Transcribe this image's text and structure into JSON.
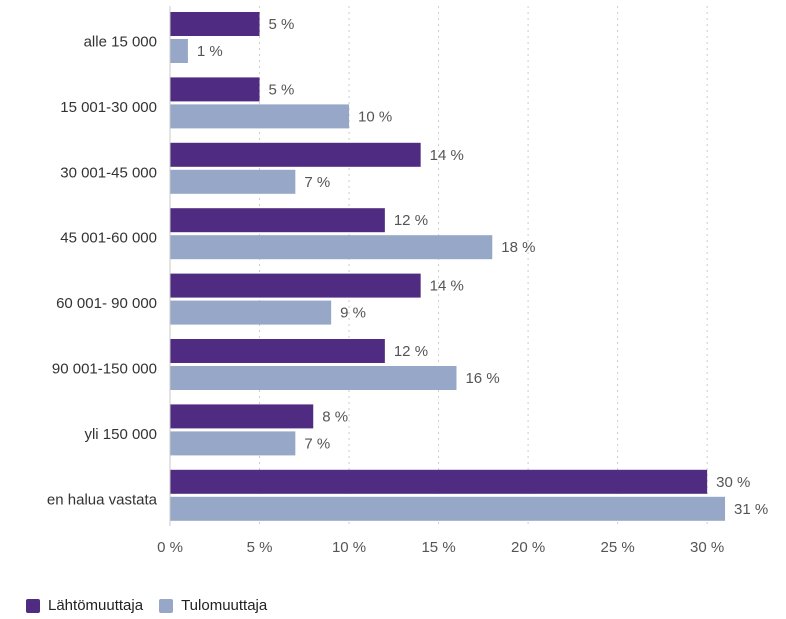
{
  "chart_data": {
    "type": "bar",
    "orientation": "horizontal",
    "title": "",
    "xlabel": "",
    "ylabel": "",
    "categories": [
      "alle 15 000",
      "15 001-30 000",
      "30 001-45 000",
      "45 001-60 000",
      "60 001- 90 000",
      "90 001-150 000",
      "yli 150 000",
      "en halua vastata"
    ],
    "series": [
      {
        "name": "Lähtömuuttaja",
        "color": "#4f2c82",
        "values": [
          5,
          5,
          14,
          12,
          14,
          12,
          8,
          30
        ],
        "labels": [
          "5 %",
          "5 %",
          "14 %",
          "12 %",
          "14 %",
          "12 %",
          "8 %",
          "30 %"
        ]
      },
      {
        "name": "Tulomuuttaja",
        "color": "#97a7c7",
        "values": [
          1,
          10,
          7,
          18,
          9,
          16,
          7,
          31
        ],
        "labels": [
          "1 %",
          "10 %",
          "7 %",
          "18 %",
          "9 %",
          "16 %",
          "7 %",
          "31 %"
        ]
      }
    ],
    "xlim": [
      0,
      31.5
    ],
    "xticks": [
      0,
      5,
      10,
      15,
      20,
      25,
      30
    ],
    "xtick_labels": [
      "0 %",
      "5 %",
      "10 %",
      "15 %",
      "20 %",
      "25 %",
      "30 %"
    ],
    "grid": "vertical dotted",
    "legend_position": "bottom-left"
  }
}
